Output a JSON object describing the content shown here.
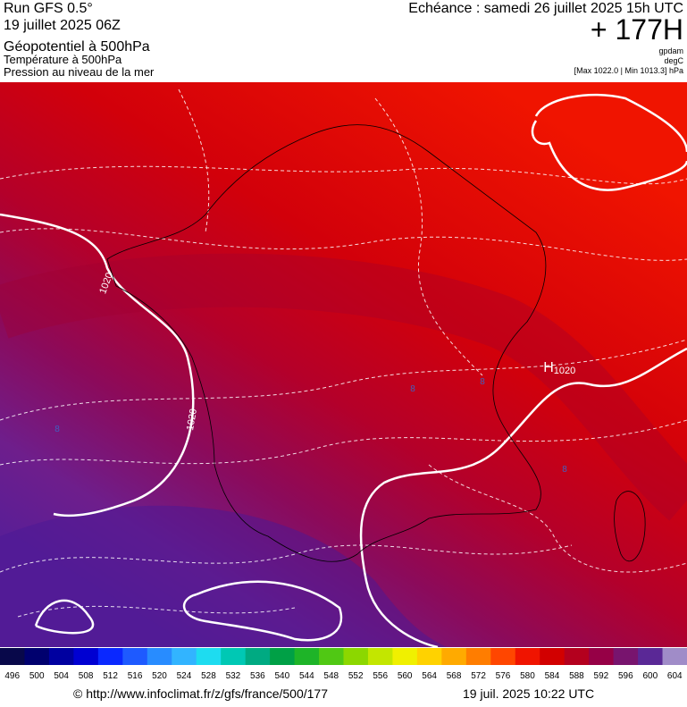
{
  "header": {
    "run": "Run GFS 0.5°",
    "date": "19 juillet 2025 06Z",
    "field": "Géopotentiel à 500hPa",
    "field2": "Température à 500hPa",
    "field3": "Pression au niveau de la mer",
    "echeance": "Echéance : samedi 26 juillet 2025 15h UTC",
    "lead": "+ 177H",
    "unit1": "gpdam",
    "unit2": "degC",
    "range": "[Max 1022.0 | Min 1013.3] hPa"
  },
  "map": {
    "labels": [
      "1020",
      "1020",
      "1020",
      "H",
      "8",
      "8",
      "8",
      "8"
    ]
  },
  "legend": {
    "values": [
      496,
      500,
      504,
      508,
      512,
      516,
      520,
      524,
      528,
      532,
      536,
      540,
      544,
      548,
      552,
      556,
      560,
      564,
      568,
      572,
      576,
      580,
      584,
      588,
      592,
      596,
      600,
      604
    ],
    "colors": [
      "#08084a",
      "#00006e",
      "#0000a0",
      "#0000d2",
      "#0a28ff",
      "#1e5aff",
      "#288cff",
      "#32b4ff",
      "#1edcf0",
      "#00c8b4",
      "#00aa82",
      "#00a046",
      "#1eb428",
      "#50c814",
      "#8cd700",
      "#c3e600",
      "#f0f000",
      "#ffd200",
      "#ffaa00",
      "#ff7d00",
      "#ff4600",
      "#f01400",
      "#d20000",
      "#b4001e",
      "#960046",
      "#78146e",
      "#5a2896",
      "#a08cc8"
    ]
  },
  "footer": {
    "url": "© http://www.infoclimat.fr/z/gfs/france/500/177",
    "time": "19 juil. 2025 10:22 UTC"
  }
}
